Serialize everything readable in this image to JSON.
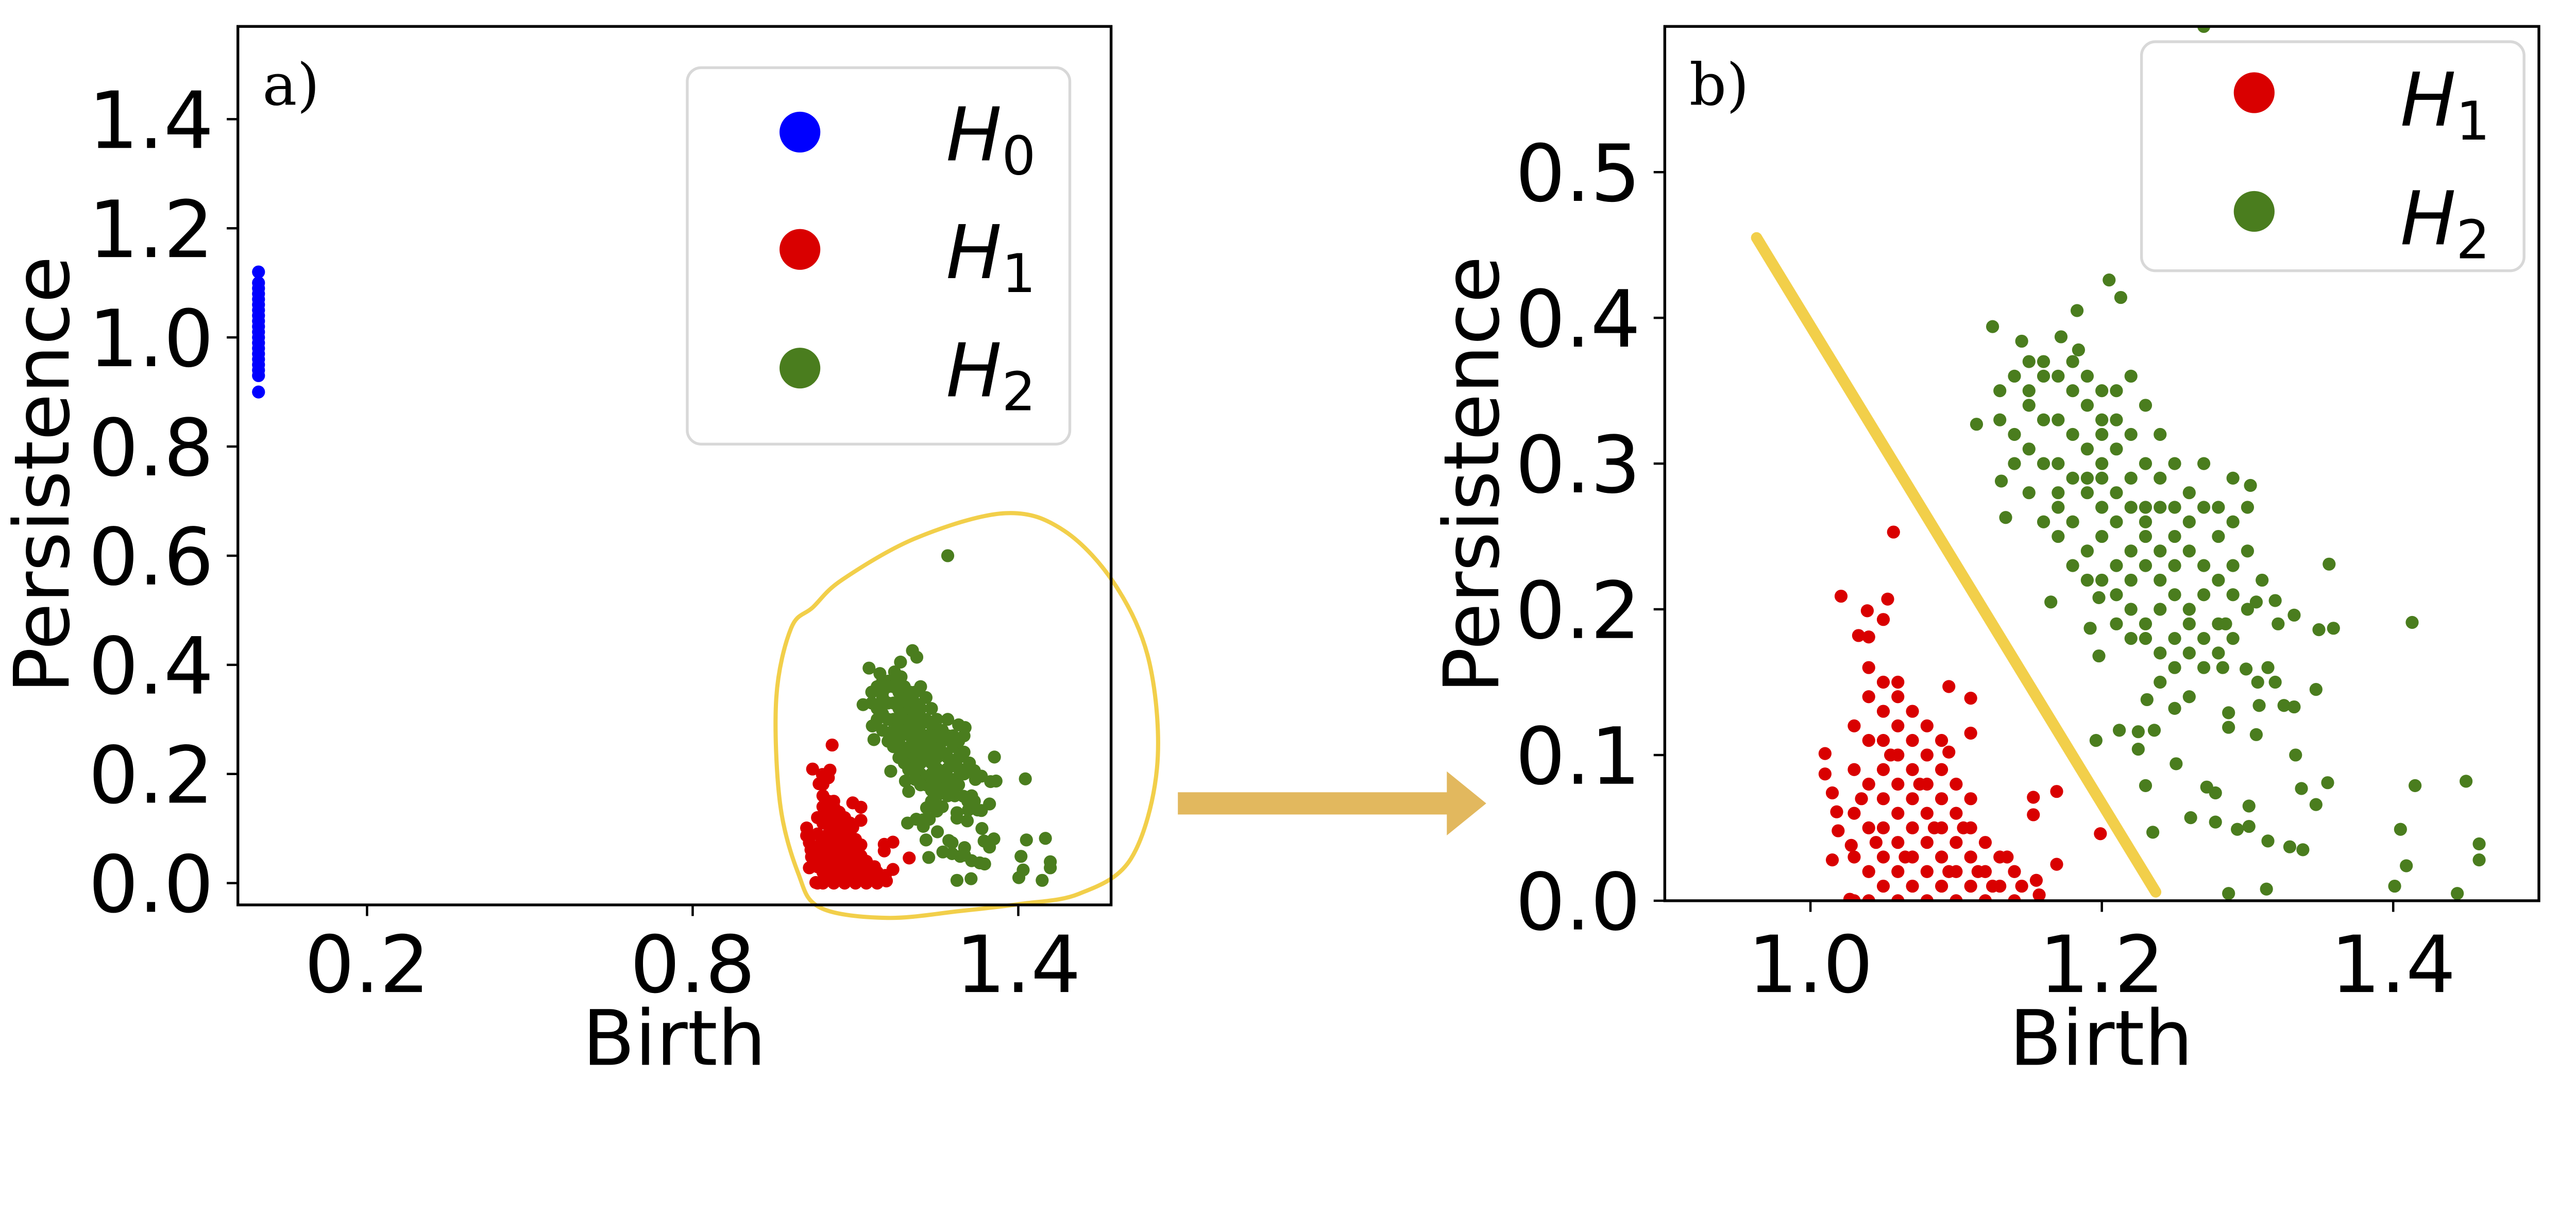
{
  "chart_data": [
    {
      "type": "scatter",
      "panel_label": "a)",
      "xlabel": "Birth",
      "ylabel": "Persistence",
      "xlim": [
        -0.038,
        1.571
      ],
      "ylim": [
        -0.04,
        1.57
      ],
      "xticks": [
        "0.2",
        "0.8",
        "1.4"
      ],
      "yticks": [
        "0.0",
        "0.2",
        "0.4",
        "0.6",
        "0.8",
        "1.0",
        "1.2",
        "1.4"
      ],
      "grid": false,
      "legend_position": "top-right",
      "series": [
        {
          "name": {
            "base": "H",
            "sub": "0"
          },
          "color": "#0000ff",
          "uses": "H0"
        },
        {
          "name": {
            "base": "H",
            "sub": "1"
          },
          "color": "#d90000",
          "uses": "H1"
        },
        {
          "name": {
            "base": "H",
            "sub": "2"
          },
          "color": "#4a7d1e",
          "uses": "H2"
        }
      ],
      "annotation": {
        "type": "freehand-circle",
        "color": "#f2cf4a",
        "encloses": [
          "H1",
          "H2"
        ]
      }
    },
    {
      "type": "scatter",
      "panel_label": "b)",
      "xlabel": "Birth",
      "ylabel": "Persistence",
      "xlim": [
        0.9,
        1.5
      ],
      "ylim": [
        0.0,
        0.6
      ],
      "xticks": [
        "1.0",
        "1.2",
        "1.4"
      ],
      "yticks": [
        "0.0",
        "0.1",
        "0.2",
        "0.3",
        "0.4",
        "0.5"
      ],
      "grid": false,
      "legend_position": "top-right",
      "series": [
        {
          "name": {
            "base": "H",
            "sub": "1"
          },
          "color": "#d90000",
          "uses": "H1"
        },
        {
          "name": {
            "base": "H",
            "sub": "2"
          },
          "color": "#4a7d1e",
          "uses": "H2"
        }
      ],
      "separator_line": {
        "x": [
          0.963,
          1.237
        ],
        "y": [
          0.455,
          0.006
        ],
        "color": "#f2cf4a"
      }
    }
  ],
  "points": {
    "H0": [
      [
        0,
        0.9
      ],
      [
        0,
        0.93
      ],
      [
        0,
        0.94
      ],
      [
        0,
        0.95
      ],
      [
        0,
        0.96
      ],
      [
        0,
        0.97
      ],
      [
        0,
        0.98
      ],
      [
        0,
        0.99
      ],
      [
        0,
        1.0
      ],
      [
        0,
        1.01
      ],
      [
        0,
        1.02
      ],
      [
        0,
        1.03
      ],
      [
        0,
        1.04
      ],
      [
        0,
        1.05
      ],
      [
        0,
        1.06
      ],
      [
        0,
        1.07
      ],
      [
        0,
        1.08
      ],
      [
        0,
        1.09
      ],
      [
        0,
        1.1
      ],
      [
        0,
        1.12
      ]
    ],
    "H1": [
      [
        1.057,
        0.253
      ],
      [
        1.021,
        0.209
      ],
      [
        1.053,
        0.207
      ],
      [
        1.039,
        0.199
      ],
      [
        1.05,
        0.193
      ],
      [
        1.033,
        0.182
      ],
      [
        1.04,
        0.181
      ],
      [
        1.01,
        0.101
      ],
      [
        1.01,
        0.087
      ],
      [
        1.015,
        0.074
      ],
      [
        1.018,
        0.061
      ],
      [
        1.019,
        0.048
      ],
      [
        1.015,
        0.028
      ],
      [
        1.028,
        0.038
      ],
      [
        1.027,
        0.001
      ],
      [
        1.095,
        0.147
      ],
      [
        1.11,
        0.139
      ],
      [
        1.11,
        0.115
      ],
      [
        1.095,
        0.102
      ],
      [
        1.153,
        0.071
      ],
      [
        1.169,
        0.075
      ],
      [
        1.153,
        0.059
      ],
      [
        1.199,
        0.046
      ],
      [
        1.169,
        0.025
      ],
      [
        1.155,
        0.014
      ],
      [
        1.157,
        0.004
      ],
      [
        1.03,
        0.0
      ],
      [
        1.03,
        0.03
      ],
      [
        1.03,
        0.06
      ],
      [
        1.03,
        0.09
      ],
      [
        1.03,
        0.12
      ],
      [
        1.04,
        0.0
      ],
      [
        1.04,
        0.02
      ],
      [
        1.04,
        0.05
      ],
      [
        1.04,
        0.08
      ],
      [
        1.04,
        0.11
      ],
      [
        1.04,
        0.14
      ],
      [
        1.04,
        0.16
      ],
      [
        1.05,
        0.01
      ],
      [
        1.05,
        0.03
      ],
      [
        1.05,
        0.05
      ],
      [
        1.05,
        0.07
      ],
      [
        1.05,
        0.09
      ],
      [
        1.05,
        0.11
      ],
      [
        1.05,
        0.13
      ],
      [
        1.05,
        0.15
      ],
      [
        1.06,
        0.0
      ],
      [
        1.06,
        0.02
      ],
      [
        1.06,
        0.04
      ],
      [
        1.06,
        0.06
      ],
      [
        1.06,
        0.08
      ],
      [
        1.06,
        0.1
      ],
      [
        1.06,
        0.12
      ],
      [
        1.06,
        0.14
      ],
      [
        1.06,
        0.15
      ],
      [
        1.07,
        0.01
      ],
      [
        1.07,
        0.03
      ],
      [
        1.07,
        0.05
      ],
      [
        1.07,
        0.07
      ],
      [
        1.07,
        0.09
      ],
      [
        1.07,
        0.11
      ],
      [
        1.07,
        0.13
      ],
      [
        1.08,
        0.0
      ],
      [
        1.08,
        0.02
      ],
      [
        1.08,
        0.04
      ],
      [
        1.08,
        0.06
      ],
      [
        1.08,
        0.08
      ],
      [
        1.08,
        0.1
      ],
      [
        1.08,
        0.12
      ],
      [
        1.09,
        0.01
      ],
      [
        1.09,
        0.03
      ],
      [
        1.09,
        0.05
      ],
      [
        1.09,
        0.07
      ],
      [
        1.09,
        0.09
      ],
      [
        1.09,
        0.11
      ],
      [
        1.1,
        0.0
      ],
      [
        1.1,
        0.02
      ],
      [
        1.1,
        0.04
      ],
      [
        1.1,
        0.06
      ],
      [
        1.1,
        0.08
      ],
      [
        1.11,
        0.01
      ],
      [
        1.11,
        0.03
      ],
      [
        1.11,
        0.05
      ],
      [
        1.11,
        0.07
      ],
      [
        1.12,
        0.0
      ],
      [
        1.12,
        0.02
      ],
      [
        1.12,
        0.04
      ],
      [
        1.13,
        0.01
      ],
      [
        1.13,
        0.03
      ],
      [
        1.14,
        0.0
      ],
      [
        1.14,
        0.02
      ],
      [
        1.035,
        0.07
      ],
      [
        1.045,
        0.04
      ],
      [
        1.055,
        0.1
      ],
      [
        1.065,
        0.03
      ],
      [
        1.075,
        0.08
      ],
      [
        1.085,
        0.05
      ],
      [
        1.095,
        0.02
      ],
      [
        1.105,
        0.05
      ],
      [
        1.115,
        0.02
      ],
      [
        1.125,
        0.01
      ],
      [
        1.135,
        0.03
      ],
      [
        1.145,
        0.01
      ]
    ],
    "H2": [
      [
        1.27,
        0.6
      ],
      [
        1.205,
        0.426
      ],
      [
        1.183,
        0.405
      ],
      [
        1.213,
        0.414
      ],
      [
        1.125,
        0.394
      ],
      [
        1.145,
        0.384
      ],
      [
        1.172,
        0.387
      ],
      [
        1.184,
        0.378
      ],
      [
        1.114,
        0.327
      ],
      [
        1.131,
        0.288
      ],
      [
        1.134,
        0.263
      ],
      [
        1.165,
        0.205
      ],
      [
        1.198,
        0.208
      ],
      [
        1.192,
        0.187
      ],
      [
        1.198,
        0.168
      ],
      [
        1.302,
        0.285
      ],
      [
        1.356,
        0.231
      ],
      [
        1.306,
        0.205
      ],
      [
        1.319,
        0.206
      ],
      [
        1.332,
        0.196
      ],
      [
        1.349,
        0.186
      ],
      [
        1.359,
        0.187
      ],
      [
        1.413,
        0.191
      ],
      [
        1.347,
        0.145
      ],
      [
        1.333,
        0.1
      ],
      [
        1.337,
        0.077
      ],
      [
        1.355,
        0.081
      ],
      [
        1.347,
        0.066
      ],
      [
        1.415,
        0.079
      ],
      [
        1.45,
        0.082
      ],
      [
        1.405,
        0.049
      ],
      [
        1.409,
        0.024
      ],
      [
        1.401,
        0.01
      ],
      [
        1.444,
        0.005
      ],
      [
        1.459,
        0.039
      ],
      [
        1.459,
        0.028
      ],
      [
        1.287,
        0.005
      ],
      [
        1.313,
        0.008
      ],
      [
        1.314,
        0.041
      ],
      [
        1.329,
        0.037
      ],
      [
        1.338,
        0.035
      ],
      [
        1.301,
        0.051
      ],
      [
        1.293,
        0.049
      ],
      [
        1.278,
        0.054
      ],
      [
        1.261,
        0.057
      ],
      [
        1.235,
        0.047
      ],
      [
        1.23,
        0.079
      ],
      [
        1.251,
        0.094
      ],
      [
        1.272,
        0.078
      ],
      [
        1.278,
        0.074
      ],
      [
        1.301,
        0.065
      ],
      [
        1.196,
        0.11
      ],
      [
        1.212,
        0.117
      ],
      [
        1.225,
        0.116
      ],
      [
        1.236,
        0.117
      ],
      [
        1.225,
        0.104
      ],
      [
        1.25,
        0.132
      ],
      [
        1.231,
        0.138
      ],
      [
        1.308,
        0.134
      ],
      [
        1.325,
        0.134
      ],
      [
        1.332,
        0.133
      ],
      [
        1.287,
        0.129
      ],
      [
        1.287,
        0.119
      ],
      [
        1.306,
        0.114
      ],
      [
        1.283,
        0.16
      ],
      [
        1.299,
        0.159
      ],
      [
        1.314,
        0.16
      ],
      [
        1.307,
        0.15
      ],
      [
        1.319,
        0.15
      ],
      [
        1.321,
        0.19
      ],
      [
        1.285,
        0.19
      ],
      [
        1.14,
        0.36
      ],
      [
        1.15,
        0.35
      ],
      [
        1.16,
        0.37
      ],
      [
        1.17,
        0.36
      ],
      [
        1.15,
        0.34
      ],
      [
        1.13,
        0.33
      ],
      [
        1.14,
        0.32
      ],
      [
        1.16,
        0.33
      ],
      [
        1.18,
        0.35
      ],
      [
        1.19,
        0.34
      ],
      [
        1.17,
        0.33
      ],
      [
        1.15,
        0.31
      ],
      [
        1.16,
        0.3
      ],
      [
        1.18,
        0.32
      ],
      [
        1.2,
        0.33
      ],
      [
        1.21,
        0.35
      ],
      [
        1.19,
        0.31
      ],
      [
        1.17,
        0.3
      ],
      [
        1.18,
        0.29
      ],
      [
        1.2,
        0.3
      ],
      [
        1.21,
        0.31
      ],
      [
        1.22,
        0.32
      ],
      [
        1.23,
        0.3
      ],
      [
        1.19,
        0.28
      ],
      [
        1.2,
        0.27
      ],
      [
        1.21,
        0.28
      ],
      [
        1.22,
        0.29
      ],
      [
        1.24,
        0.29
      ],
      [
        1.25,
        0.3
      ],
      [
        1.17,
        0.27
      ],
      [
        1.18,
        0.26
      ],
      [
        1.2,
        0.25
      ],
      [
        1.21,
        0.26
      ],
      [
        1.22,
        0.27
      ],
      [
        1.23,
        0.26
      ],
      [
        1.24,
        0.27
      ],
      [
        1.26,
        0.28
      ],
      [
        1.19,
        0.24
      ],
      [
        1.21,
        0.23
      ],
      [
        1.22,
        0.24
      ],
      [
        1.23,
        0.25
      ],
      [
        1.24,
        0.24
      ],
      [
        1.25,
        0.25
      ],
      [
        1.26,
        0.26
      ],
      [
        1.27,
        0.27
      ],
      [
        1.2,
        0.22
      ],
      [
        1.21,
        0.21
      ],
      [
        1.22,
        0.22
      ],
      [
        1.23,
        0.23
      ],
      [
        1.24,
        0.22
      ],
      [
        1.25,
        0.23
      ],
      [
        1.26,
        0.24
      ],
      [
        1.27,
        0.23
      ],
      [
        1.28,
        0.25
      ],
      [
        1.22,
        0.2
      ],
      [
        1.23,
        0.19
      ],
      [
        1.24,
        0.2
      ],
      [
        1.25,
        0.21
      ],
      [
        1.26,
        0.2
      ],
      [
        1.27,
        0.21
      ],
      [
        1.28,
        0.22
      ],
      [
        1.29,
        0.23
      ],
      [
        1.23,
        0.18
      ],
      [
        1.24,
        0.17
      ],
      [
        1.25,
        0.18
      ],
      [
        1.26,
        0.19
      ],
      [
        1.27,
        0.18
      ],
      [
        1.28,
        0.19
      ],
      [
        1.29,
        0.21
      ],
      [
        1.25,
        0.16
      ],
      [
        1.26,
        0.17
      ],
      [
        1.27,
        0.16
      ],
      [
        1.28,
        0.17
      ],
      [
        1.29,
        0.18
      ],
      [
        1.13,
        0.35
      ],
      [
        1.15,
        0.37
      ],
      [
        1.16,
        0.36
      ],
      [
        1.18,
        0.37
      ],
      [
        1.19,
        0.36
      ],
      [
        1.2,
        0.35
      ],
      [
        1.14,
        0.3
      ],
      [
        1.15,
        0.28
      ],
      [
        1.16,
        0.26
      ],
      [
        1.17,
        0.25
      ],
      [
        1.18,
        0.23
      ],
      [
        1.19,
        0.22
      ],
      [
        1.21,
        0.19
      ],
      [
        1.22,
        0.18
      ],
      [
        1.24,
        0.15
      ],
      [
        1.26,
        0.14
      ],
      [
        1.23,
        0.27
      ],
      [
        1.19,
        0.29
      ],
      [
        1.2,
        0.32
      ],
      [
        1.25,
        0.27
      ],
      [
        1.17,
        0.28
      ],
      [
        1.28,
        0.27
      ],
      [
        1.3,
        0.24
      ],
      [
        1.31,
        0.22
      ],
      [
        1.3,
        0.2
      ],
      [
        1.27,
        0.3
      ],
      [
        1.29,
        0.29
      ],
      [
        1.3,
        0.27
      ],
      [
        1.29,
        0.26
      ],
      [
        1.24,
        0.32
      ],
      [
        1.23,
        0.34
      ],
      [
        1.22,
        0.36
      ],
      [
        1.21,
        0.33
      ],
      [
        1.2,
        0.29
      ]
    ]
  },
  "colors": {
    "H0": "#0000ff",
    "H1": "#d90000",
    "H2": "#4a7d1e",
    "highlight": "#f2cf4a",
    "arrow": "#e2b85e"
  }
}
